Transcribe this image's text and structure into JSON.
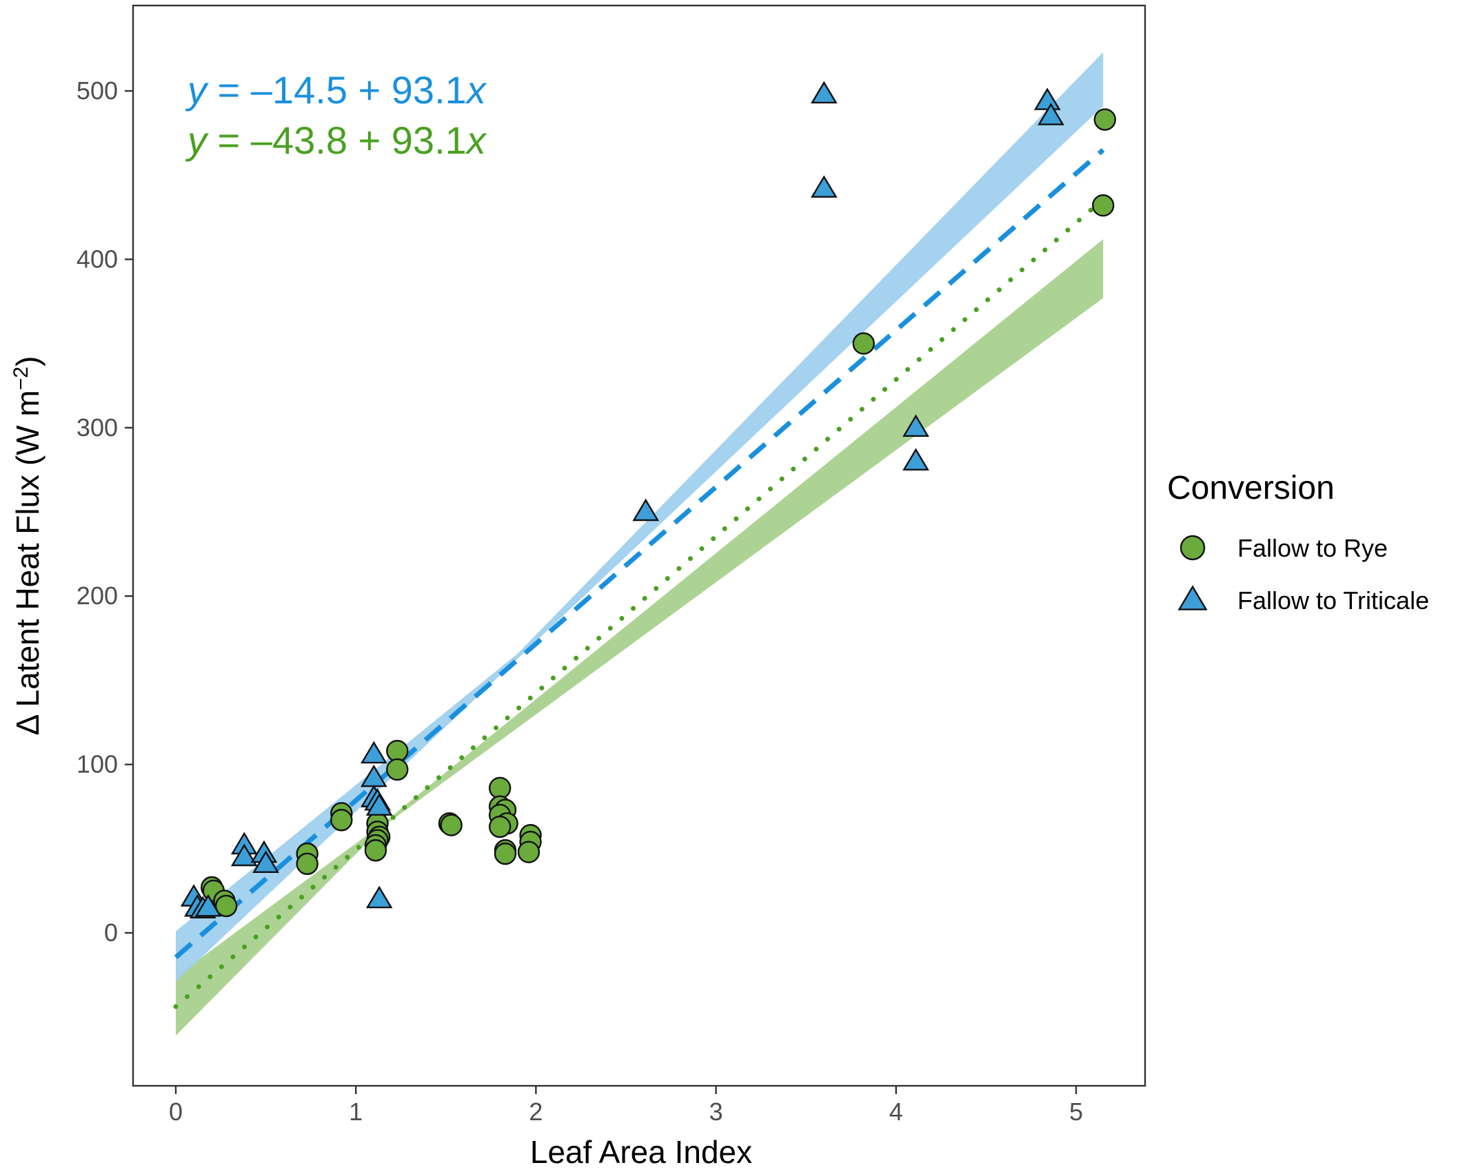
{
  "chart_data": {
    "type": "scatter",
    "xlabel": "Leaf Area Index",
    "ylabel_main": "Δ Latent Heat Flux (W m",
    "ylabel_sup": "−2",
    "ylabel_close": ")",
    "xlim": [
      -0.24,
      5.4
    ],
    "ylim": [
      -90,
      550
    ],
    "xticks": [
      0,
      1,
      2,
      3,
      4,
      5
    ],
    "yticks": [
      0,
      100,
      200,
      300,
      400,
      500
    ],
    "grid": false,
    "legend": {
      "title": "Conversion",
      "placement": "right",
      "entries": [
        "Fallow to Rye",
        "Fallow to Triticale"
      ]
    },
    "series": [
      {
        "name": "Fallow to Rye",
        "marker": "circle",
        "color": "#6aab3c",
        "fit_color": "#4aa020",
        "band_color": "#a9d18e",
        "line_style": "dotted",
        "intercept": -43.8,
        "slope": 93.1,
        "equation": {
          "y": "y",
          "rest": " = –43.8 + 93.1",
          "x": "x"
        },
        "band": {
          "x": [
            0,
            1.15,
            5.15
          ],
          "lower": [
            -61,
            63,
            377
          ],
          "upper": [
            -26,
            65,
            412
          ]
        },
        "points": [
          {
            "x": 0.2,
            "y": 27
          },
          {
            "x": 0.21,
            "y": 25
          },
          {
            "x": 0.27,
            "y": 19
          },
          {
            "x": 0.28,
            "y": 16
          },
          {
            "x": 0.73,
            "y": 47
          },
          {
            "x": 0.73,
            "y": 41
          },
          {
            "x": 0.92,
            "y": 71
          },
          {
            "x": 0.92,
            "y": 67
          },
          {
            "x": 1.12,
            "y": 65
          },
          {
            "x": 1.12,
            "y": 60
          },
          {
            "x": 1.13,
            "y": 57
          },
          {
            "x": 1.12,
            "y": 55
          },
          {
            "x": 1.11,
            "y": 52
          },
          {
            "x": 1.11,
            "y": 49
          },
          {
            "x": 1.23,
            "y": 108
          },
          {
            "x": 1.23,
            "y": 97
          },
          {
            "x": 1.52,
            "y": 65
          },
          {
            "x": 1.53,
            "y": 64
          },
          {
            "x": 1.8,
            "y": 86
          },
          {
            "x": 1.8,
            "y": 75
          },
          {
            "x": 1.83,
            "y": 73
          },
          {
            "x": 1.8,
            "y": 70
          },
          {
            "x": 1.84,
            "y": 65
          },
          {
            "x": 1.8,
            "y": 63
          },
          {
            "x": 1.83,
            "y": 49
          },
          {
            "x": 1.83,
            "y": 47
          },
          {
            "x": 1.97,
            "y": 58
          },
          {
            "x": 1.97,
            "y": 54
          },
          {
            "x": 1.96,
            "y": 48
          },
          {
            "x": 3.82,
            "y": 350
          },
          {
            "x": 5.15,
            "y": 432
          },
          {
            "x": 5.16,
            "y": 483
          }
        ]
      },
      {
        "name": "Fallow to Triticale",
        "marker": "triangle",
        "color": "#3d9fd8",
        "fit_color": "#1a90dd",
        "band_color": "#9fd0ee",
        "line_style": "dashed",
        "intercept": -14.5,
        "slope": 93.1,
        "equation": {
          "y": "y",
          "rest": " = –14.5 + 93.1",
          "x": "x"
        },
        "band": {
          "x": [
            0,
            1.9,
            5.15
          ],
          "lower": [
            -29,
            163,
            491
          ],
          "upper": [
            1,
            166,
            523
          ]
        },
        "points": [
          {
            "x": 0.1,
            "y": 21
          },
          {
            "x": 0.12,
            "y": 15
          },
          {
            "x": 0.15,
            "y": 14
          },
          {
            "x": 0.18,
            "y": 15
          },
          {
            "x": 0.38,
            "y": 52
          },
          {
            "x": 0.38,
            "y": 45
          },
          {
            "x": 0.49,
            "y": 47
          },
          {
            "x": 0.5,
            "y": 41
          },
          {
            "x": 1.1,
            "y": 106
          },
          {
            "x": 1.1,
            "y": 92
          },
          {
            "x": 1.1,
            "y": 80
          },
          {
            "x": 1.12,
            "y": 78
          },
          {
            "x": 1.13,
            "y": 75
          },
          {
            "x": 1.13,
            "y": 20
          },
          {
            "x": 2.61,
            "y": 250
          },
          {
            "x": 3.6,
            "y": 498
          },
          {
            "x": 3.6,
            "y": 442
          },
          {
            "x": 4.11,
            "y": 300
          },
          {
            "x": 4.11,
            "y": 280
          },
          {
            "x": 4.84,
            "y": 494
          },
          {
            "x": 4.86,
            "y": 485
          }
        ]
      }
    ]
  }
}
